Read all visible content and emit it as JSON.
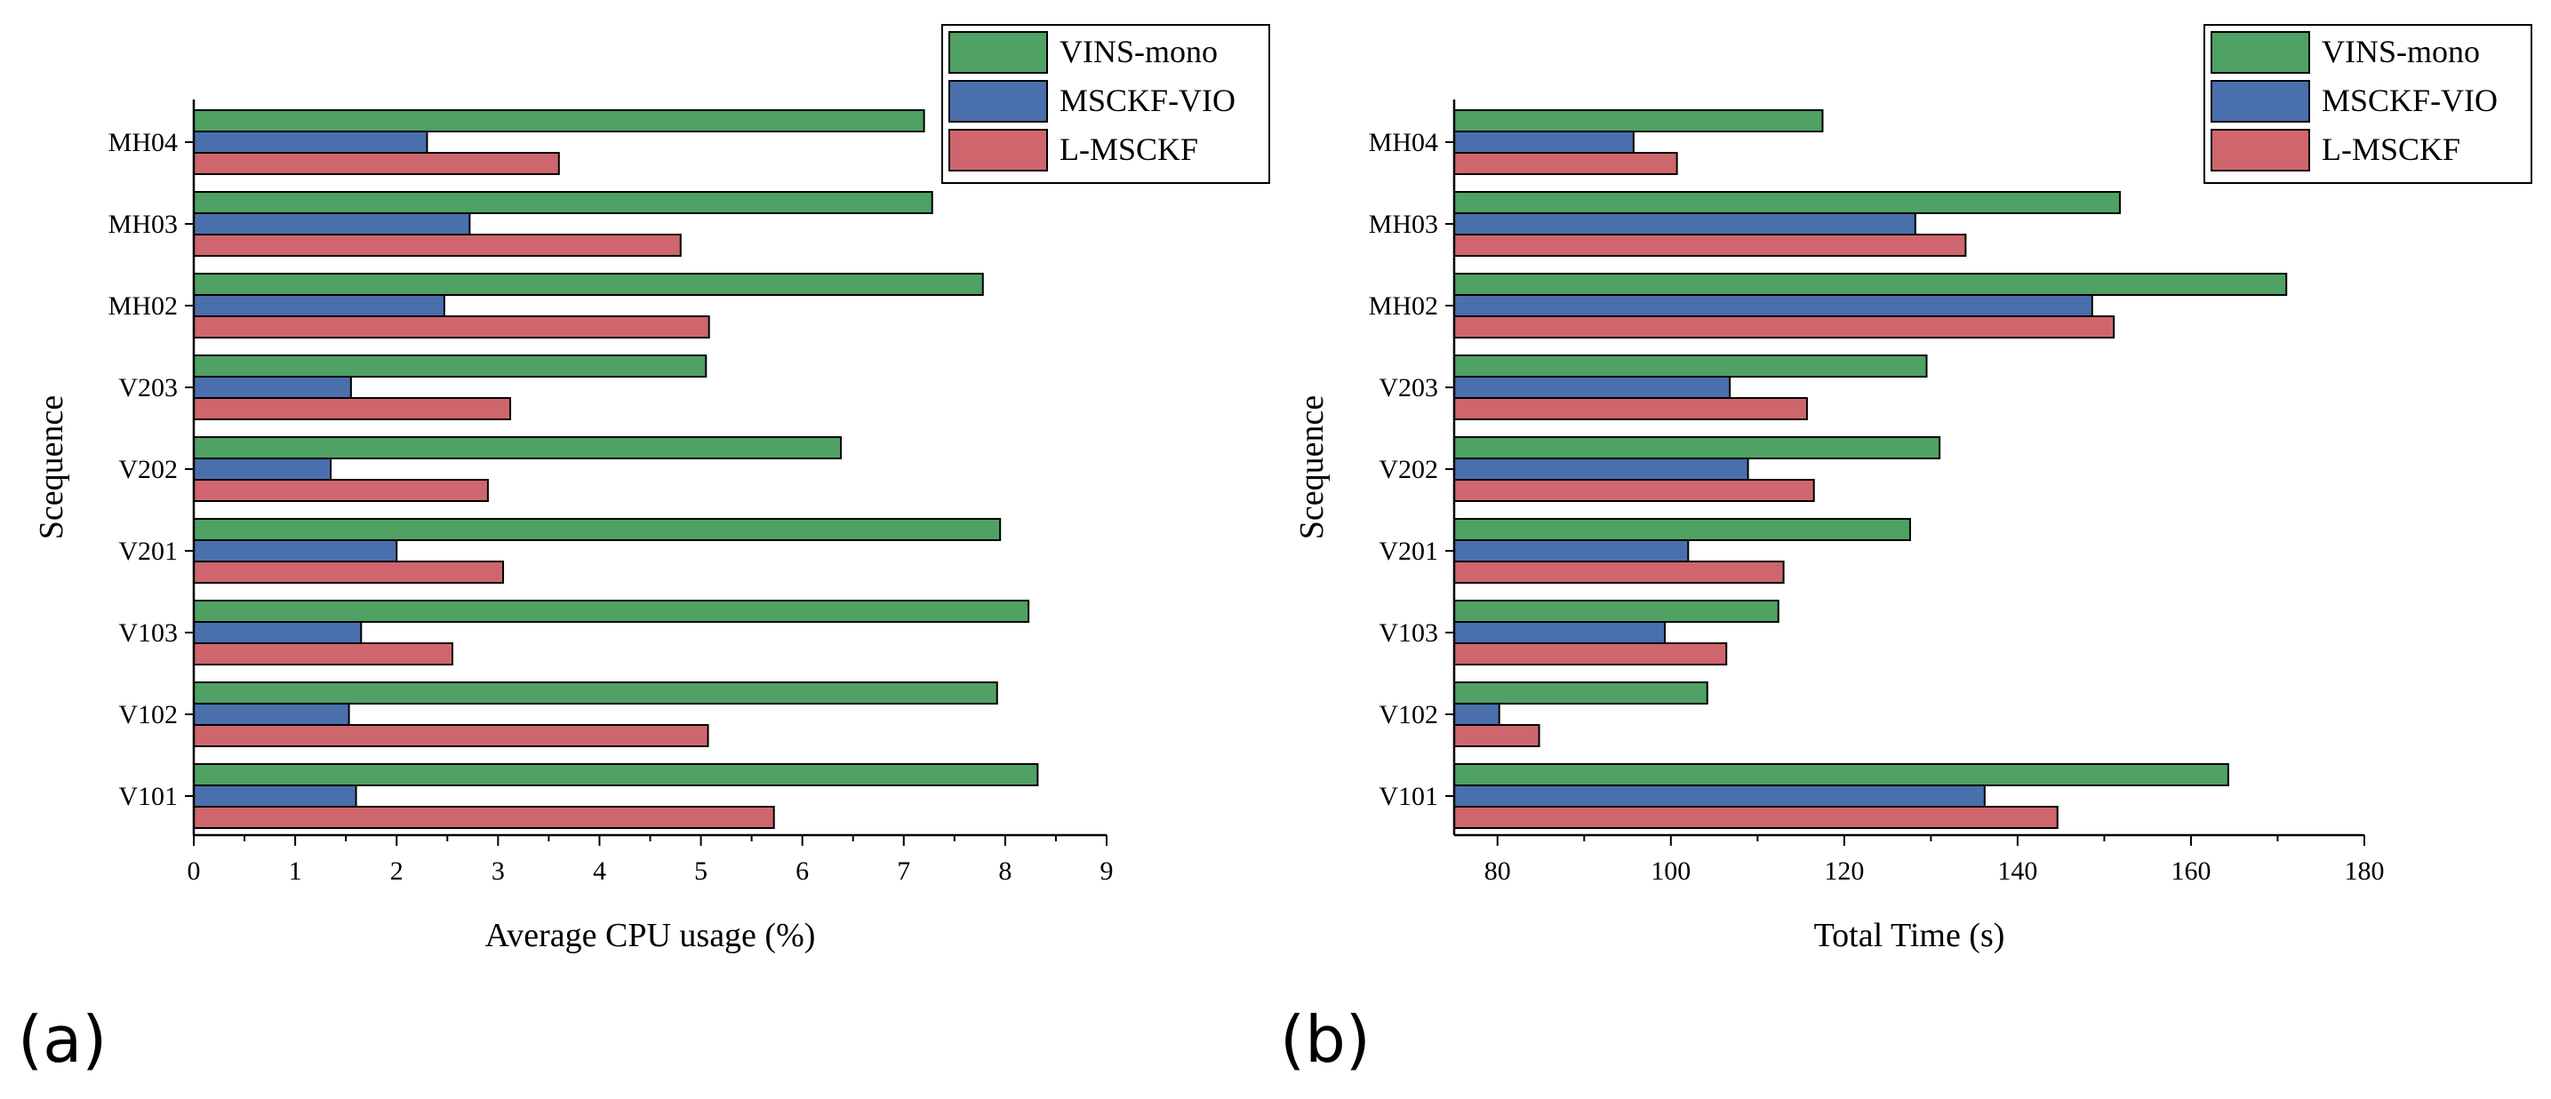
{
  "colors": {
    "vins": "#4fa164",
    "msckf": "#4a6fad",
    "lmsckf": "#d0666d",
    "axis": "#000000",
    "background": "#ffffff"
  },
  "chart_data": [
    {
      "type": "bar",
      "orientation": "horizontal",
      "panel_label": "(a)",
      "title": "",
      "xlabel": "Average CPU usage (%)",
      "ylabel": "Scequence",
      "xlim": [
        0,
        9
      ],
      "xticks": [
        "0",
        "1",
        "2",
        "3",
        "4",
        "5",
        "6",
        "7",
        "8",
        "9"
      ],
      "categories": [
        "V101",
        "V102",
        "V103",
        "V201",
        "V202",
        "V203",
        "MH02",
        "MH03",
        "MH04"
      ],
      "legend_position": "top-right",
      "series": [
        {
          "name": "VINS-mono",
          "color_key": "vins",
          "values": [
            8.32,
            7.92,
            8.23,
            7.95,
            6.38,
            5.05,
            7.78,
            7.28,
            7.2
          ]
        },
        {
          "name": "MSCKF-VIO",
          "color_key": "msckf",
          "values": [
            1.6,
            1.53,
            1.65,
            2.0,
            1.35,
            1.55,
            2.47,
            2.72,
            2.3
          ]
        },
        {
          "name": "L-MSCKF",
          "color_key": "lmsckf",
          "values": [
            5.72,
            5.07,
            2.55,
            3.05,
            2.9,
            3.12,
            5.08,
            4.8,
            3.6
          ]
        }
      ]
    },
    {
      "type": "bar",
      "orientation": "horizontal",
      "panel_label": "(b)",
      "title": "",
      "xlabel": "Total Time (s)",
      "ylabel": "Scequence",
      "xlim": [
        75,
        180
      ],
      "xtick_values": [
        80,
        100,
        120,
        140,
        160,
        180
      ],
      "xticks": [
        "80",
        "100",
        "120",
        "140",
        "160",
        "180"
      ],
      "categories": [
        "V101",
        "V102",
        "V103",
        "V201",
        "V202",
        "V203",
        "MH02",
        "MH03",
        "MH04"
      ],
      "legend_position": "top-right",
      "series": [
        {
          "name": "VINS-mono",
          "color_key": "vins",
          "values": [
            164.3,
            104.2,
            112.4,
            127.6,
            131.0,
            129.5,
            171.0,
            151.8,
            117.5
          ]
        },
        {
          "name": "MSCKF-VIO",
          "color_key": "msckf",
          "values": [
            136.2,
            80.2,
            99.3,
            102.0,
            108.9,
            106.8,
            148.6,
            128.2,
            95.7
          ]
        },
        {
          "name": "L-MSCKF",
          "color_key": "lmsckf",
          "values": [
            144.6,
            84.8,
            106.4,
            113.0,
            116.5,
            115.7,
            151.1,
            134.0,
            100.7
          ]
        }
      ]
    }
  ]
}
